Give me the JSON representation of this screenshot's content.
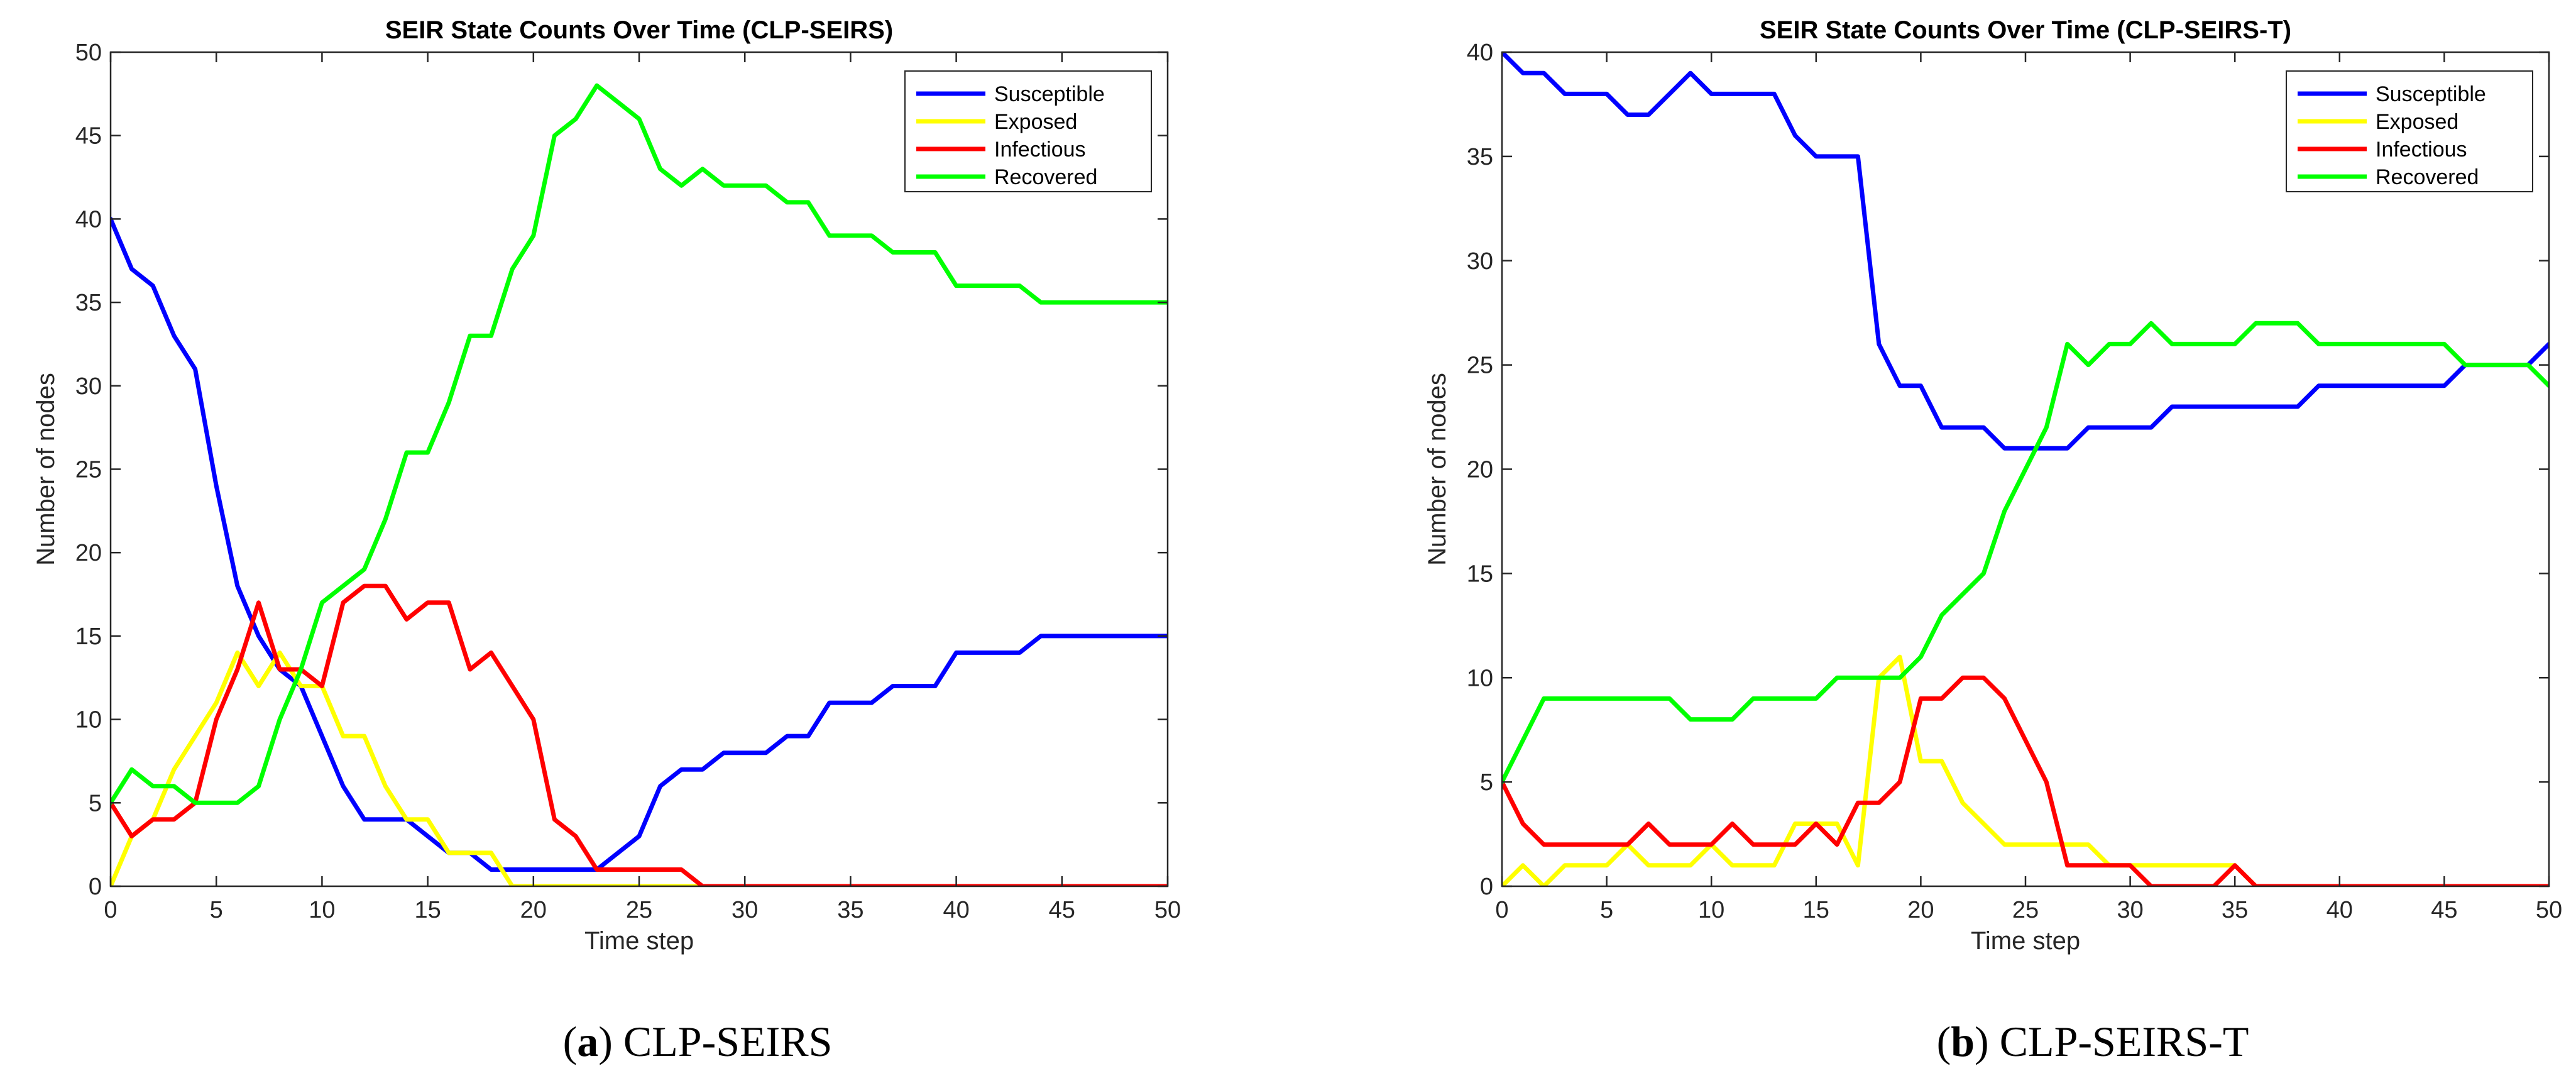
{
  "chart_data": [
    {
      "type": "line",
      "title": "SEIR State Counts Over Time (CLP-SEIRS)",
      "xlabel": "Time step",
      "ylabel": "Number of nodes",
      "xlim": [
        0,
        50
      ],
      "ylim": [
        0,
        50
      ],
      "xticks": [
        0,
        5,
        10,
        15,
        20,
        25,
        30,
        35,
        40,
        45,
        50
      ],
      "yticks": [
        0,
        5,
        10,
        15,
        20,
        25,
        30,
        35,
        40,
        45,
        50
      ],
      "legend_position": "top-right",
      "x": [
        0,
        1,
        2,
        3,
        4,
        5,
        6,
        7,
        8,
        9,
        10,
        11,
        12,
        13,
        14,
        15,
        16,
        17,
        18,
        19,
        20,
        21,
        22,
        23,
        24,
        25,
        26,
        27,
        28,
        29,
        30,
        31,
        32,
        33,
        34,
        35,
        36,
        37,
        38,
        39,
        40,
        41,
        42,
        43,
        44,
        45,
        46,
        47,
        48,
        49,
        50
      ],
      "series": [
        {
          "name": "Susceptible",
          "color": "#0000ff",
          "values": [
            40,
            37,
            36,
            33,
            31,
            24,
            18,
            15,
            13,
            12,
            9,
            6,
            4,
            4,
            4,
            3,
            2,
            2,
            1,
            1,
            1,
            1,
            1,
            1,
            2,
            3,
            6,
            7,
            7,
            8,
            8,
            8,
            9,
            9,
            11,
            11,
            11,
            12,
            12,
            12,
            14,
            14,
            14,
            14,
            15,
            15,
            15,
            15,
            15,
            15,
            15
          ]
        },
        {
          "name": "Exposed",
          "color": "#ffff00",
          "values": [
            0,
            3,
            4,
            7,
            9,
            11,
            14,
            12,
            14,
            12,
            12,
            9,
            9,
            6,
            4,
            4,
            2,
            2,
            2,
            0,
            0,
            0,
            0,
            0,
            0,
            0,
            0,
            0,
            0,
            0,
            0,
            0,
            0,
            0,
            0,
            0,
            0,
            0,
            0,
            0,
            0,
            0,
            0,
            0,
            0,
            0,
            0,
            0,
            0,
            0,
            0
          ]
        },
        {
          "name": "Infectious",
          "color": "#ff0000",
          "values": [
            5,
            3,
            4,
            4,
            5,
            10,
            13,
            17,
            13,
            13,
            12,
            17,
            18,
            18,
            16,
            17,
            17,
            13,
            14,
            12,
            10,
            4,
            3,
            1,
            1,
            1,
            1,
            1,
            0,
            0,
            0,
            0,
            0,
            0,
            0,
            0,
            0,
            0,
            0,
            0,
            0,
            0,
            0,
            0,
            0,
            0,
            0,
            0,
            0,
            0,
            0
          ]
        },
        {
          "name": "Recovered",
          "color": "#00ff00",
          "values": [
            5,
            7,
            6,
            6,
            5,
            5,
            5,
            6,
            10,
            13,
            17,
            18,
            19,
            22,
            26,
            26,
            29,
            33,
            33,
            37,
            39,
            45,
            46,
            48,
            47,
            46,
            43,
            42,
            43,
            42,
            42,
            42,
            41,
            41,
            39,
            39,
            39,
            38,
            38,
            38,
            36,
            36,
            36,
            36,
            35,
            35,
            35,
            35,
            35,
            35,
            35
          ]
        }
      ]
    },
    {
      "type": "line",
      "title": "SEIR State Counts Over Time (CLP-SEIRS-T)",
      "xlabel": "Time step",
      "ylabel": "Number of nodes",
      "xlim": [
        0,
        50
      ],
      "ylim": [
        0,
        40
      ],
      "xticks": [
        0,
        5,
        10,
        15,
        20,
        25,
        30,
        35,
        40,
        45,
        50
      ],
      "yticks": [
        0,
        5,
        10,
        15,
        20,
        25,
        30,
        35,
        40
      ],
      "legend_position": "top-right",
      "x": [
        0,
        1,
        2,
        3,
        4,
        5,
        6,
        7,
        8,
        9,
        10,
        11,
        12,
        13,
        14,
        15,
        16,
        17,
        18,
        19,
        20,
        21,
        22,
        23,
        24,
        25,
        26,
        27,
        28,
        29,
        30,
        31,
        32,
        33,
        34,
        35,
        36,
        37,
        38,
        39,
        40,
        41,
        42,
        43,
        44,
        45,
        46,
        47,
        48,
        49,
        50
      ],
      "series": [
        {
          "name": "Susceptible",
          "color": "#0000ff",
          "values": [
            40,
            39,
            39,
            38,
            38,
            38,
            37,
            37,
            38,
            39,
            38,
            38,
            38,
            38,
            36,
            35,
            35,
            35,
            26,
            24,
            24,
            22,
            22,
            22,
            21,
            21,
            21,
            21,
            22,
            22,
            22,
            22,
            23,
            23,
            23,
            23,
            23,
            23,
            23,
            24,
            24,
            24,
            24,
            24,
            24,
            24,
            25,
            25,
            25,
            25,
            26
          ]
        },
        {
          "name": "Exposed",
          "color": "#ffff00",
          "values": [
            0,
            1,
            0,
            1,
            1,
            1,
            2,
            1,
            1,
            1,
            2,
            1,
            1,
            1,
            3,
            3,
            3,
            1,
            10,
            11,
            6,
            6,
            4,
            3,
            2,
            2,
            2,
            2,
            2,
            1,
            1,
            1,
            1,
            1,
            1,
            1,
            0,
            0,
            0,
            0,
            0,
            0,
            0,
            0,
            0,
            0,
            0,
            0,
            0,
            0,
            0
          ]
        },
        {
          "name": "Infectious",
          "color": "#ff0000",
          "values": [
            5,
            3,
            2,
            2,
            2,
            2,
            2,
            3,
            2,
            2,
            2,
            3,
            2,
            2,
            2,
            3,
            2,
            4,
            4,
            5,
            9,
            9,
            10,
            10,
            9,
            7,
            5,
            1,
            1,
            1,
            1,
            0,
            0,
            0,
            0,
            1,
            0,
            0,
            0,
            0,
            0,
            0,
            0,
            0,
            0,
            0,
            0,
            0,
            0,
            0,
            0
          ]
        },
        {
          "name": "Recovered",
          "color": "#00ff00",
          "values": [
            5,
            7,
            9,
            9,
            9,
            9,
            9,
            9,
            9,
            8,
            8,
            8,
            9,
            9,
            9,
            9,
            10,
            10,
            10,
            10,
            11,
            13,
            14,
            15,
            18,
            20,
            22,
            26,
            25,
            26,
            26,
            27,
            26,
            26,
            26,
            26,
            27,
            27,
            27,
            26,
            26,
            26,
            26,
            26,
            26,
            26,
            25,
            25,
            25,
            25,
            24
          ]
        }
      ]
    }
  ],
  "captions": [
    {
      "letter": "a",
      "text": "CLP-SEIRS"
    },
    {
      "letter": "b",
      "text": "CLP-SEIRS-T"
    }
  ]
}
